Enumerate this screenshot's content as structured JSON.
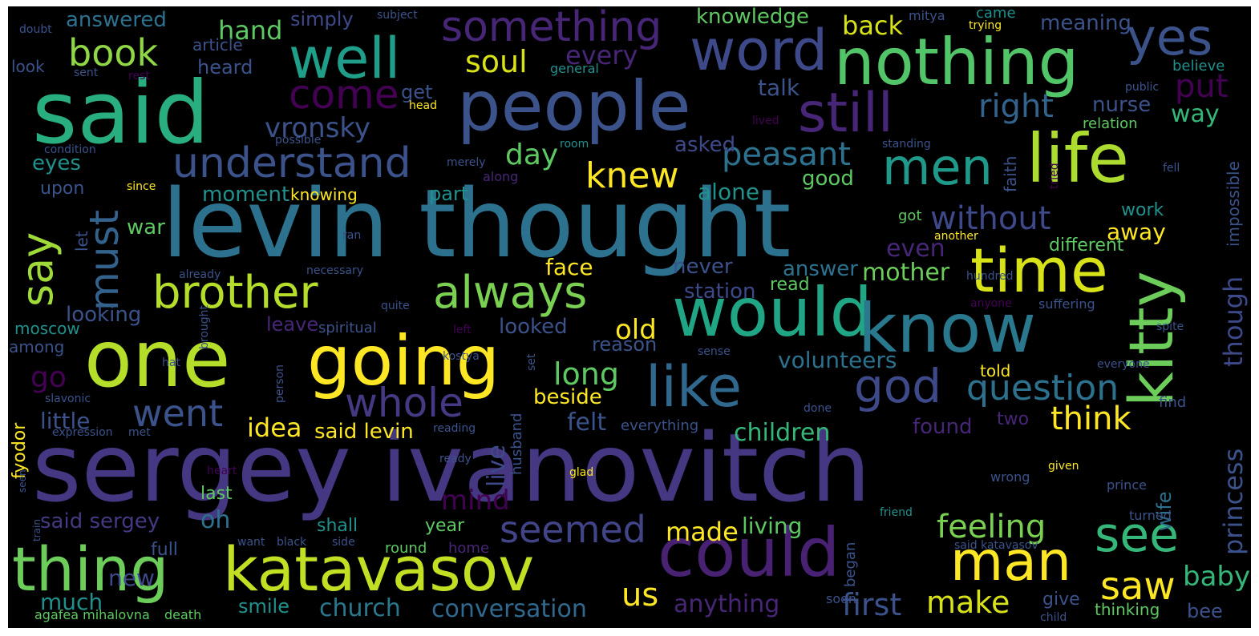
{
  "cloud": {
    "background": "#000000",
    "palette": [
      "#440154",
      "#3b528b",
      "#21918c",
      "#5ec962",
      "#fde725"
    ],
    "words": [
      {
        "text": "sergey ivanovitch",
        "weight": 1.0,
        "color": "#453781"
      },
      {
        "text": "levin thought",
        "weight": 0.97,
        "color": "#2c728e"
      },
      {
        "text": "said",
        "weight": 0.78,
        "color": "#29af7f"
      },
      {
        "text": "one",
        "weight": 0.72,
        "color": "#b5de2b"
      },
      {
        "text": "going",
        "weight": 0.62,
        "color": "#fde725"
      },
      {
        "text": "people",
        "weight": 0.63,
        "color": "#3b528b"
      },
      {
        "text": "would",
        "weight": 0.62,
        "color": "#21a685"
      },
      {
        "text": "know",
        "weight": 0.6,
        "color": "#2a788e"
      },
      {
        "text": "could",
        "weight": 0.62,
        "color": "#482173"
      },
      {
        "text": "nothing",
        "weight": 0.6,
        "color": "#52c569"
      },
      {
        "text": "life",
        "weight": 0.62,
        "color": "#addc30"
      },
      {
        "text": "time",
        "weight": 0.56,
        "color": "#d8e219"
      },
      {
        "text": "kitty",
        "weight": 0.55,
        "color": "#6ccd5a"
      },
      {
        "text": "thing",
        "weight": 0.55,
        "color": "#6ccd5a"
      },
      {
        "text": "katavasov",
        "weight": 0.57,
        "color": "#c2df23"
      },
      {
        "text": "well",
        "weight": 0.52,
        "color": "#1f9e89"
      },
      {
        "text": "word",
        "weight": 0.52,
        "color": "#3e4989"
      },
      {
        "text": "like",
        "weight": 0.5,
        "color": "#31688e"
      },
      {
        "text": "man",
        "weight": 0.5,
        "color": "#fde725"
      },
      {
        "text": "still",
        "weight": 0.5,
        "color": "#482677"
      },
      {
        "text": "men",
        "weight": 0.45,
        "color": "#1f9a8a"
      },
      {
        "text": "yes",
        "weight": 0.44,
        "color": "#3b528b"
      },
      {
        "text": "see",
        "weight": 0.44,
        "color": "#35b779"
      },
      {
        "text": "god",
        "weight": 0.42,
        "color": "#3e4989"
      },
      {
        "text": "always",
        "weight": 0.4,
        "color": "#7ad151"
      },
      {
        "text": "brother",
        "weight": 0.4,
        "color": "#b5de2b"
      },
      {
        "text": "something",
        "weight": 0.38,
        "color": "#482677"
      },
      {
        "text": "say",
        "weight": 0.36,
        "color": "#a0da39"
      },
      {
        "text": "must",
        "weight": 0.34,
        "color": "#33638d"
      },
      {
        "text": "understand",
        "weight": 0.35,
        "color": "#3b528b"
      },
      {
        "text": "whole",
        "weight": 0.34,
        "color": "#443983"
      },
      {
        "text": "question",
        "weight": 0.31,
        "color": "#2c728e"
      },
      {
        "text": "seemed",
        "weight": 0.31,
        "color": "#414487"
      },
      {
        "text": "saw",
        "weight": 0.31,
        "color": "#fde725"
      },
      {
        "text": "book",
        "weight": 0.3,
        "color": "#8fd744"
      },
      {
        "text": "went",
        "weight": 0.3,
        "color": "#3b528b"
      },
      {
        "text": "knew",
        "weight": 0.29,
        "color": "#fde725"
      },
      {
        "text": "peasant",
        "weight": 0.28,
        "color": "#2c728e"
      },
      {
        "text": "come",
        "weight": 0.29,
        "color": "#440154"
      },
      {
        "text": "right",
        "weight": 0.26,
        "color": "#33638d"
      },
      {
        "text": "think",
        "weight": 0.26,
        "color": "#fde725"
      },
      {
        "text": "feeling",
        "weight": 0.26,
        "color": "#7ad151"
      },
      {
        "text": "without",
        "weight": 0.25,
        "color": "#3e4989"
      },
      {
        "text": "princess",
        "weight": 0.24,
        "color": "#3b528b"
      },
      {
        "text": "though",
        "weight": 0.24,
        "color": "#3e4989"
      },
      {
        "text": "put",
        "weight": 0.24,
        "color": "#440154"
      },
      {
        "text": "soul",
        "weight": 0.24,
        "color": "#d8e219"
      },
      {
        "text": "long",
        "weight": 0.23,
        "color": "#5ec962"
      },
      {
        "text": "made",
        "weight": 0.22,
        "color": "#fde725"
      },
      {
        "text": "make",
        "weight": 0.22,
        "color": "#d8e219"
      },
      {
        "text": "first",
        "weight": 0.22,
        "color": "#3b528b"
      },
      {
        "text": "us",
        "weight": 0.24,
        "color": "#fde725"
      },
      {
        "text": "baby",
        "weight": 0.22,
        "color": "#35b779"
      },
      {
        "text": "vronsky",
        "weight": 0.21,
        "color": "#3b528b"
      },
      {
        "text": "day",
        "weight": 0.21,
        "color": "#5ec962"
      },
      {
        "text": "go",
        "weight": 0.21,
        "color": "#440154"
      },
      {
        "text": "every",
        "weight": 0.2,
        "color": "#482677"
      },
      {
        "text": "mind",
        "weight": 0.2,
        "color": "#440154"
      },
      {
        "text": "idea",
        "weight": 0.19,
        "color": "#fde725"
      },
      {
        "text": "old",
        "weight": 0.19,
        "color": "#fde725"
      },
      {
        "text": "little",
        "weight": 0.18,
        "color": "#3b528b"
      },
      {
        "text": "hand",
        "weight": 0.18,
        "color": "#5ec962"
      },
      {
        "text": "back",
        "weight": 0.18,
        "color": "#d8e219"
      },
      {
        "text": "anything",
        "weight": 0.18,
        "color": "#482677"
      },
      {
        "text": "church",
        "weight": 0.18,
        "color": "#2a788e"
      },
      {
        "text": "conversation",
        "weight": 0.18,
        "color": "#31688e"
      },
      {
        "text": "felt",
        "weight": 0.17,
        "color": "#3b528b"
      },
      {
        "text": "live",
        "weight": 0.17,
        "color": "#3e4989"
      },
      {
        "text": "alone",
        "weight": 0.16,
        "color": "#21918c"
      },
      {
        "text": "children",
        "weight": 0.17,
        "color": "#35b779"
      },
      {
        "text": "oh",
        "weight": 0.17,
        "color": "#2c728e"
      },
      {
        "text": "mother",
        "weight": 0.17,
        "color": "#6ccd5a"
      },
      {
        "text": "even",
        "weight": 0.17,
        "color": "#482677"
      },
      {
        "text": "away",
        "weight": 0.15,
        "color": "#fde725"
      },
      {
        "text": "way",
        "weight": 0.17,
        "color": "#35b779"
      },
      {
        "text": "volunteers",
        "weight": 0.16,
        "color": "#2c728e"
      },
      {
        "text": "new",
        "weight": 0.16,
        "color": "#3e4989"
      },
      {
        "text": "much",
        "weight": 0.16,
        "color": "#21918c"
      },
      {
        "text": "living",
        "weight": 0.15,
        "color": "#5ec962"
      },
      {
        "text": "said sergey",
        "weight": 0.15,
        "color": "#443983"
      },
      {
        "text": "face",
        "weight": 0.15,
        "color": "#fde725"
      },
      {
        "text": "talk",
        "weight": 0.15,
        "color": "#3b528b"
      },
      {
        "text": "moment",
        "weight": 0.14,
        "color": "#21918c"
      },
      {
        "text": "said levin",
        "weight": 0.14,
        "color": "#fde725"
      },
      {
        "text": "beside",
        "weight": 0.14,
        "color": "#fde725"
      },
      {
        "text": "looking",
        "weight": 0.14,
        "color": "#3b528b"
      },
      {
        "text": "knowledge",
        "weight": 0.14,
        "color": "#5ec962"
      },
      {
        "text": "nurse",
        "weight": 0.14,
        "color": "#3b528b"
      },
      {
        "text": "meaning",
        "weight": 0.14,
        "color": "#3b528b"
      },
      {
        "text": "station",
        "weight": 0.14,
        "color": "#3e4989"
      },
      {
        "text": "looked",
        "weight": 0.14,
        "color": "#3b528b"
      },
      {
        "text": "reason",
        "weight": 0.14,
        "color": "#3b528b"
      },
      {
        "text": "answer",
        "weight": 0.14,
        "color": "#2c728e"
      },
      {
        "text": "asked",
        "weight": 0.14,
        "color": "#3e4989"
      },
      {
        "text": "good",
        "weight": 0.14,
        "color": "#5ec962"
      },
      {
        "text": "found",
        "weight": 0.14,
        "color": "#482677"
      },
      {
        "text": "never",
        "weight": 0.14,
        "color": "#3b528b"
      },
      {
        "text": "work",
        "weight": 0.12,
        "color": "#21918c"
      },
      {
        "text": "eyes",
        "weight": 0.14,
        "color": "#21918c"
      },
      {
        "text": "get",
        "weight": 0.13,
        "color": "#3b528b"
      },
      {
        "text": "part",
        "weight": 0.13,
        "color": "#21918c"
      },
      {
        "text": "war",
        "weight": 0.13,
        "color": "#5ec962"
      },
      {
        "text": "leave",
        "weight": 0.12,
        "color": "#482677"
      },
      {
        "text": "answered",
        "weight": 0.13,
        "color": "#2c728e"
      },
      {
        "text": "simply",
        "weight": 0.13,
        "color": "#3e4989"
      },
      {
        "text": "heard",
        "weight": 0.13,
        "color": "#3b528b"
      },
      {
        "text": "shall",
        "weight": 0.12,
        "color": "#21918c"
      },
      {
        "text": "smile",
        "weight": 0.13,
        "color": "#21918c"
      },
      {
        "text": "year",
        "weight": 0.12,
        "color": "#5ec962"
      },
      {
        "text": "last",
        "weight": 0.12,
        "color": "#5ec962"
      },
      {
        "text": "read",
        "weight": 0.12,
        "color": "#5ec962"
      },
      {
        "text": "give",
        "weight": 0.12,
        "color": "#3b528b"
      },
      {
        "text": "bee",
        "weight": 0.12,
        "color": "#3b528b"
      },
      {
        "text": "told",
        "weight": 0.11,
        "color": "#fde725"
      },
      {
        "text": "two",
        "weight": 0.11,
        "color": "#482677"
      },
      {
        "text": "wife",
        "weight": 0.12,
        "color": "#2c728e"
      },
      {
        "text": "different",
        "weight": 0.11,
        "color": "#5ec962"
      },
      {
        "text": "impossible",
        "weight": 0.11,
        "color": "#3b528b"
      },
      {
        "text": "faith",
        "weight": 0.1,
        "color": "#3b528b"
      },
      {
        "text": "moscow",
        "weight": 0.1,
        "color": "#21918c"
      },
      {
        "text": "spiritual",
        "weight": 0.1,
        "color": "#3b528b"
      },
      {
        "text": "knowing",
        "weight": 0.1,
        "color": "#fde725"
      },
      {
        "text": "full",
        "weight": 0.11,
        "color": "#3b528b"
      },
      {
        "text": "upon",
        "weight": 0.11,
        "color": "#3b528b"
      },
      {
        "text": "among",
        "weight": 0.1,
        "color": "#3b528b"
      },
      {
        "text": "let",
        "weight": 0.1,
        "color": "#3b528b"
      },
      {
        "text": "article",
        "weight": 0.1,
        "color": "#3b528b"
      },
      {
        "text": "look",
        "weight": 0.1,
        "color": "#3b528b"
      },
      {
        "text": "round",
        "weight": 0.09,
        "color": "#5ec962"
      },
      {
        "text": "home",
        "weight": 0.09,
        "color": "#482677"
      },
      {
        "text": "find",
        "weight": 0.09,
        "color": "#3b528b"
      },
      {
        "text": "believe",
        "weight": 0.09,
        "color": "#21918c"
      },
      {
        "text": "relation",
        "weight": 0.09,
        "color": "#5ec962"
      },
      {
        "text": "suffering",
        "weight": 0.08,
        "color": "#3b528b"
      },
      {
        "text": "everything",
        "weight": 0.08,
        "color": "#3b528b"
      },
      {
        "text": "thinking",
        "weight": 0.08,
        "color": "#5ec962"
      },
      {
        "text": "fyodor",
        "weight": 0.08,
        "color": "#fde725"
      },
      {
        "text": "husband",
        "weight": 0.08,
        "color": "#3b528b"
      },
      {
        "text": "began",
        "weight": 0.08,
        "color": "#3b528b"
      },
      {
        "text": "prince",
        "weight": 0.07,
        "color": "#3b528b"
      },
      {
        "text": "turned",
        "weight": 0.07,
        "color": "#3b528b"
      },
      {
        "text": "came",
        "weight": 0.08,
        "color": "#21918c"
      },
      {
        "text": "mitya",
        "weight": 0.08,
        "color": "#3b528b"
      },
      {
        "text": "subject",
        "weight": 0.07,
        "color": "#3b528b"
      },
      {
        "text": "general",
        "weight": 0.07,
        "color": "#21918c"
      },
      {
        "text": "standing",
        "weight": 0.07,
        "color": "#3b528b"
      },
      {
        "text": "room",
        "weight": 0.06,
        "color": "#21918c"
      },
      {
        "text": "necessary",
        "weight": 0.06,
        "color": "#3b528b"
      },
      {
        "text": "already",
        "weight": 0.06,
        "color": "#3b528b"
      },
      {
        "text": "quite",
        "weight": 0.06,
        "color": "#3b528b"
      },
      {
        "text": "agafea mihalovna",
        "weight": 0.06,
        "color": "#5ec962"
      },
      {
        "text": "death",
        "weight": 0.06,
        "color": "#5ec962"
      },
      {
        "text": "condition",
        "weight": 0.06,
        "color": "#3b528b"
      },
      {
        "text": "possible",
        "weight": 0.06,
        "color": "#3b528b"
      },
      {
        "text": "merely",
        "weight": 0.06,
        "color": "#3b528b"
      },
      {
        "text": "along",
        "weight": 0.06,
        "color": "#482677"
      },
      {
        "text": "since",
        "weight": 0.06,
        "color": "#fde725"
      },
      {
        "text": "expression",
        "weight": 0.06,
        "color": "#3b528b"
      },
      {
        "text": "slavonic",
        "weight": 0.06,
        "color": "#3b528b"
      },
      {
        "text": "met",
        "weight": 0.06,
        "color": "#3b528b"
      },
      {
        "text": "reading",
        "weight": 0.05,
        "color": "#3b528b"
      },
      {
        "text": "ready",
        "weight": 0.05,
        "color": "#3b528b"
      },
      {
        "text": "glad",
        "weight": 0.05,
        "color": "#fde725"
      },
      {
        "text": "given",
        "weight": 0.05,
        "color": "#fde725"
      },
      {
        "text": "wrong",
        "weight": 0.06,
        "color": "#3b528b"
      },
      {
        "text": "friend",
        "weight": 0.05,
        "color": "#21918c"
      },
      {
        "text": "said katavasov",
        "weight": 0.05,
        "color": "#3b528b"
      },
      {
        "text": "child",
        "weight": 0.05,
        "color": "#3b528b"
      },
      {
        "text": "soon",
        "weight": 0.06,
        "color": "#3b528b"
      },
      {
        "text": "black",
        "weight": 0.05,
        "color": "#3b528b"
      },
      {
        "text": "side",
        "weight": 0.05,
        "color": "#3b528b"
      },
      {
        "text": "want",
        "weight": 0.05,
        "color": "#3b528b"
      },
      {
        "text": "heart",
        "weight": 0.05,
        "color": "#440154"
      },
      {
        "text": "seen",
        "weight": 0.05,
        "color": "#3b528b"
      },
      {
        "text": "train",
        "weight": 0.05,
        "color": "#3b528b"
      },
      {
        "text": "doubt",
        "weight": 0.05,
        "color": "#3b528b"
      },
      {
        "text": "sent",
        "weight": 0.05,
        "color": "#3b528b"
      },
      {
        "text": "rest",
        "weight": 0.05,
        "color": "#440154"
      },
      {
        "text": "head",
        "weight": 0.05,
        "color": "#fde725"
      },
      {
        "text": "lived",
        "weight": 0.05,
        "color": "#440154"
      },
      {
        "text": "ran",
        "weight": 0.05,
        "color": "#3b528b"
      },
      {
        "text": "brought",
        "weight": 0.05,
        "color": "#3b528b"
      },
      {
        "text": "left",
        "weight": 0.05,
        "color": "#440154"
      },
      {
        "text": "hat",
        "weight": 0.05,
        "color": "#3b528b"
      },
      {
        "text": "person",
        "weight": 0.05,
        "color": "#3b528b"
      },
      {
        "text": "kostya",
        "weight": 0.05,
        "color": "#3b528b"
      },
      {
        "text": "sense",
        "weight": 0.05,
        "color": "#3b528b"
      },
      {
        "text": "set",
        "weight": 0.05,
        "color": "#3b528b"
      },
      {
        "text": "done",
        "weight": 0.05,
        "color": "#3b528b"
      },
      {
        "text": "everyone",
        "weight": 0.05,
        "color": "#3b528b"
      },
      {
        "text": "anyone",
        "weight": 0.05,
        "color": "#440154"
      },
      {
        "text": "hundred",
        "weight": 0.05,
        "color": "#3b528b"
      },
      {
        "text": "another",
        "weight": 0.05,
        "color": "#fde725"
      },
      {
        "text": "tried",
        "weight": 0.05,
        "color": "#440154"
      },
      {
        "text": "fell",
        "weight": 0.05,
        "color": "#3b528b"
      },
      {
        "text": "public",
        "weight": 0.05,
        "color": "#3b528b"
      },
      {
        "text": "spite",
        "weight": 0.05,
        "color": "#3b528b"
      },
      {
        "text": "trying",
        "weight": 0.05,
        "color": "#fde725"
      },
      {
        "text": "got",
        "weight": 0.05,
        "color": "#5ec962"
      }
    ]
  }
}
